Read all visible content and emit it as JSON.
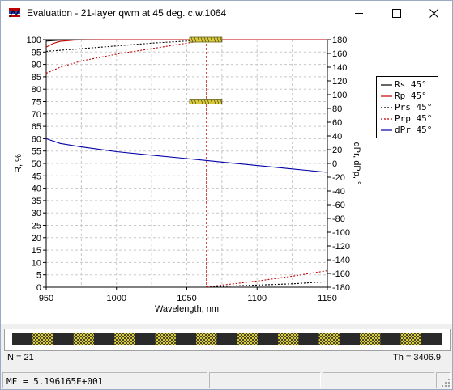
{
  "window": {
    "title": "Evaluation - 21-layer qwm at 45 deg. c.w.1064",
    "icons": [
      "app-icon",
      "minimize-icon",
      "maximize-icon",
      "close-icon"
    ]
  },
  "chart_data": {
    "type": "line",
    "xlabel": "Wavelength, nm",
    "ylabel": "R, %",
    "y2label": "dPr, dPp, °",
    "xlim": [
      950,
      1150
    ],
    "ylim": [
      0,
      100
    ],
    "y2lim": [
      -180,
      180
    ],
    "xticks": [
      "950",
      "1000",
      "1050",
      "1100",
      "1150"
    ],
    "yticks": [
      "0",
      "5",
      "10",
      "15",
      "20",
      "25",
      "30",
      "35",
      "40",
      "45",
      "50",
      "55",
      "60",
      "65",
      "70",
      "75",
      "80",
      "85",
      "90",
      "95",
      "100"
    ],
    "y2ticks": [
      "-180",
      "-160",
      "-140",
      "-120",
      "-100",
      "-80",
      "-60",
      "-40",
      "-20",
      "0",
      "20",
      "40",
      "60",
      "80",
      "100",
      "120",
      "140",
      "160",
      "180"
    ],
    "grid": true,
    "legend_position": "right",
    "reference_wavelength": 1064,
    "series": [
      {
        "name": "Rs 45°",
        "color": "#000000",
        "dash": "solid",
        "axis": "left",
        "x": [
          950,
          960,
          980,
          1000,
          1020,
          1040,
          1064,
          1100,
          1150
        ],
        "y": [
          99.4,
          99.8,
          99.98,
          100,
          100,
          100,
          100,
          100,
          100
        ]
      },
      {
        "name": "Rp 45°",
        "color": "#c00000",
        "dash": "solid",
        "axis": "left",
        "x": [
          950,
          955,
          960,
          970,
          980,
          1000,
          1020,
          1064,
          1100,
          1150
        ],
        "y": [
          97,
          98.5,
          99.3,
          99.8,
          99.95,
          100,
          100,
          100,
          100,
          100
        ]
      },
      {
        "name": "Prs 45°",
        "color": "#000000",
        "dash": "dashed",
        "axis": "right",
        "x": [
          950,
          975,
          1000,
          1025,
          1050,
          1063.9,
          1064.1,
          1100,
          1125,
          1150
        ],
        "y": [
          163,
          167,
          171,
          175,
          178,
          179.5,
          -179.5,
          -177,
          -175,
          -172
        ]
      },
      {
        "name": "Prp 45°",
        "color": "#c00000",
        "dash": "dashed",
        "axis": "right",
        "x": [
          950,
          960,
          975,
          1000,
          1025,
          1050,
          1063.9,
          1064.1,
          1100,
          1125,
          1150
        ],
        "y": [
          131,
          140,
          149,
          159,
          167,
          175,
          179.5,
          -179.5,
          -171,
          -164,
          -156
        ]
      },
      {
        "name": "dPr 45°",
        "color": "#0000a8",
        "dash": "solid",
        "axis": "right",
        "x": [
          950,
          960,
          975,
          1000,
          1025,
          1050,
          1075,
          1100,
          1125,
          1150
        ],
        "y": [
          36,
          29,
          24,
          17,
          12,
          7,
          2,
          -3,
          -8,
          -13
        ]
      }
    ],
    "markers": [
      {
        "x_from": 1052,
        "x_to": 1075,
        "y": 100,
        "axis": "left"
      },
      {
        "x_from": 1052,
        "x_to": 1075,
        "y": 75,
        "axis": "left"
      }
    ]
  },
  "layer_stack": {
    "layer_count": 21
  },
  "info": {
    "n_label": "N = 21",
    "th_label": "Th = 3406.9"
  },
  "status": {
    "mf": "MF =  5.196165E+001"
  }
}
